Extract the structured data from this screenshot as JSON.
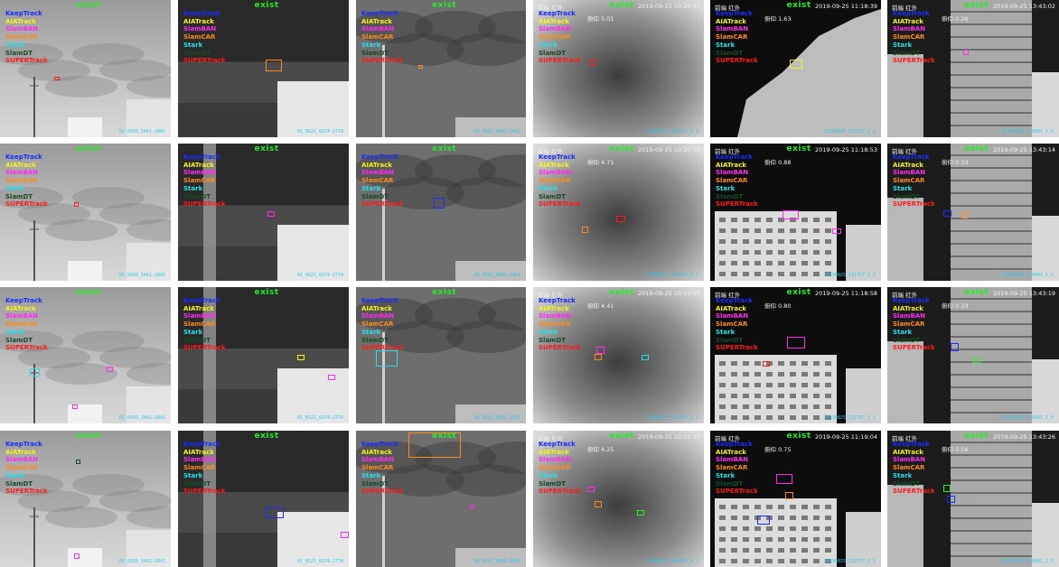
{
  "image": {
    "description_words": [],
    "layout": "grid of 4 rows x 6 columns of thermal infrared tracking frames"
  },
  "legend": [
    {
      "label": "KeepTrack",
      "color": "#1a2cff"
    },
    {
      "label": "AIATrack",
      "color": "#f3f31a"
    },
    {
      "label": "SlamBAN",
      "color": "#ff2cf0"
    },
    {
      "label": "SlamCAR",
      "color": "#ff8a1a"
    },
    {
      "label": "Stark",
      "color": "#26e0e8"
    },
    {
      "label": "SlamDT",
      "color": "#1a4a22"
    },
    {
      "label": "SUPERTrack",
      "color": "#ff1a1a"
    }
  ],
  "exist_label": "exist",
  "hud_camera": "前端  红外",
  "rows": [
    {
      "cells": [
        {
          "stamp": "02_6503_1041-2041",
          "ts": "",
          "angle": ""
        },
        {
          "stamp": "02_6521_0274-2774",
          "ts": "",
          "angle": ""
        },
        {
          "stamp": "02_6521_0982-2461",
          "ts": "",
          "angle": ""
        },
        {
          "stamp": "20190925_102027_1_2",
          "ts": "2019-09-25  10:20:47",
          "angle": "俯仰 5.01"
        },
        {
          "stamp": "20190925_111757_1_2",
          "ts": "2019-09-25  11:18:39",
          "angle": "俯仰 1.63"
        },
        {
          "stamp": "20190925_134301_1_5",
          "ts": "2019-09-25  13:43:02",
          "angle": "俯仰 0.26"
        }
      ]
    },
    {
      "cells": [
        {
          "stamp": "02_6503_1041-2041",
          "ts": "",
          "angle": ""
        },
        {
          "stamp": "02_6521_0274-2774",
          "ts": "",
          "angle": ""
        },
        {
          "stamp": "02_6521_0982-2461",
          "ts": "",
          "angle": ""
        },
        {
          "stamp": "20190925_102027_1_2",
          "ts": "2019-09-25  10:20:59",
          "angle": "俯仰 4.71"
        },
        {
          "stamp": "20190925_111757_1_2",
          "ts": "2019-09-25  11:18:53",
          "angle": "俯仰 0.88"
        },
        {
          "stamp": "20190925_134301_1_5",
          "ts": "2019-09-25  13:43:14",
          "angle": "俯仰 0.33"
        }
      ]
    },
    {
      "cells": [
        {
          "stamp": "02_6503_1041-2041",
          "ts": "",
          "angle": ""
        },
        {
          "stamp": "02_6521_0274-2774",
          "ts": "",
          "angle": ""
        },
        {
          "stamp": "02_6521_0982-2461",
          "ts": "",
          "angle": ""
        },
        {
          "stamp": "20190925_102027_1_2",
          "ts": "2019-09-25  10:21:05",
          "angle": "俯仰 4.41"
        },
        {
          "stamp": "20190925_111757_1_2",
          "ts": "2019-09-25  11:18:58",
          "angle": "俯仰 0.80"
        },
        {
          "stamp": "20190925_134301_1_5",
          "ts": "2019-09-25  13:43:19",
          "angle": "俯仰 0.33"
        }
      ]
    },
    {
      "cells": [
        {
          "stamp": "02_6503_1041-2041",
          "ts": "",
          "angle": ""
        },
        {
          "stamp": "02_6521_0274-2774",
          "ts": "",
          "angle": ""
        },
        {
          "stamp": "02_6521_0982-2461",
          "ts": "",
          "angle": ""
        },
        {
          "stamp": "20190925_102027_1_2",
          "ts": "2019-09-25  10:21:11",
          "angle": "俯仰 4.25"
        },
        {
          "stamp": "20190925_111757_1_2",
          "ts": "2019-09-25  11:19:04",
          "angle": "俯仰 0.75"
        },
        {
          "stamp": "20190925_134301_1_5",
          "ts": "2019-09-25  13:43:26",
          "angle": "俯仰 0.56"
        }
      ]
    }
  ],
  "colors": {
    "background": "#ffffff",
    "exist": "#22ee22",
    "stamp": "#24c9e8",
    "hud": "#f2f2f2"
  }
}
